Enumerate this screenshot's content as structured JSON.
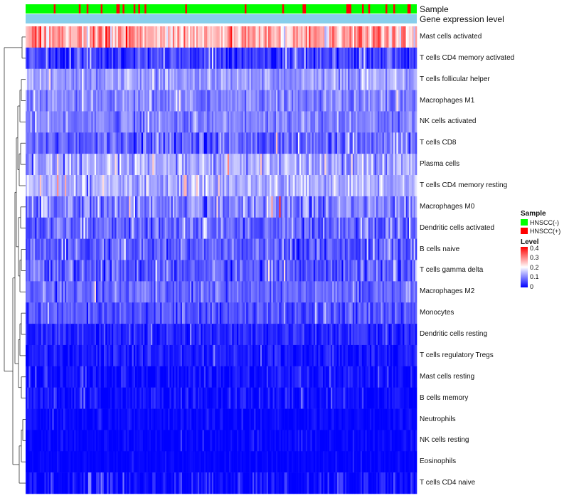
{
  "chart_data": {
    "type": "heatmap",
    "title": "",
    "annotation_rows": [
      {
        "label": "Sample",
        "kind": "categorical"
      },
      {
        "label": "Gene expression level",
        "kind": "constant",
        "color": "#87ceeb"
      }
    ],
    "sample_groups": [
      {
        "name": "HNSCC(-)",
        "color": "#00ff00"
      },
      {
        "name": "HNSCC(+)",
        "color": "#ff0000"
      }
    ],
    "sample_group_legend_title": "Sample",
    "n_samples": 250,
    "positive_fraction": 0.12,
    "rows": [
      {
        "name": "Mast cells activated",
        "mean": 0.26,
        "spread": 0.08
      },
      {
        "name": "T cells CD4 memory activated",
        "mean": 0.05,
        "spread": 0.05
      },
      {
        "name": "T cells follicular helper",
        "mean": 0.12,
        "spread": 0.04
      },
      {
        "name": "Macrophages M1",
        "mean": 0.1,
        "spread": 0.04
      },
      {
        "name": "NK cells activated",
        "mean": 0.1,
        "spread": 0.04
      },
      {
        "name": "T cells CD8",
        "mean": 0.08,
        "spread": 0.05
      },
      {
        "name": "Plasma cells",
        "mean": 0.13,
        "spread": 0.06
      },
      {
        "name": "T cells CD4 memory resting",
        "mean": 0.14,
        "spread": 0.05
      },
      {
        "name": "Macrophages M0",
        "mean": 0.1,
        "spread": 0.06
      },
      {
        "name": "Dendritic cells activated",
        "mean": 0.08,
        "spread": 0.05
      },
      {
        "name": "B cells naive",
        "mean": 0.07,
        "spread": 0.05
      },
      {
        "name": "T cells gamma delta",
        "mean": 0.07,
        "spread": 0.05
      },
      {
        "name": "Macrophages M2",
        "mean": 0.08,
        "spread": 0.04
      },
      {
        "name": "Monocytes",
        "mean": 0.06,
        "spread": 0.04
      },
      {
        "name": "Dendritic cells resting",
        "mean": 0.03,
        "spread": 0.03
      },
      {
        "name": "T cells regulatory  Tregs",
        "mean": 0.02,
        "spread": 0.03
      },
      {
        "name": "Mast cells resting",
        "mean": 0.01,
        "spread": 0.03
      },
      {
        "name": "B cells memory",
        "mean": 0.01,
        "spread": 0.03
      },
      {
        "name": "Neutrophils",
        "mean": 0.005,
        "spread": 0.02
      },
      {
        "name": "NK cells resting",
        "mean": 0.003,
        "spread": 0.015
      },
      {
        "name": "Eosinophils",
        "mean": 0.002,
        "spread": 0.01
      },
      {
        "name": "T cells CD4 naive",
        "mean": 0.01,
        "spread": 0.04
      }
    ],
    "color_scale": {
      "title": "Level",
      "min": 0,
      "max": 0.4,
      "stops": [
        {
          "value": 0,
          "color": "#0000ff"
        },
        {
          "value": 0.2,
          "color": "#ffffff"
        },
        {
          "value": 0.4,
          "color": "#ff0000"
        }
      ],
      "ticks": [
        "0.4",
        "0.3",
        "0.2",
        "0.1",
        "0"
      ]
    },
    "row_dendrogram": true
  }
}
